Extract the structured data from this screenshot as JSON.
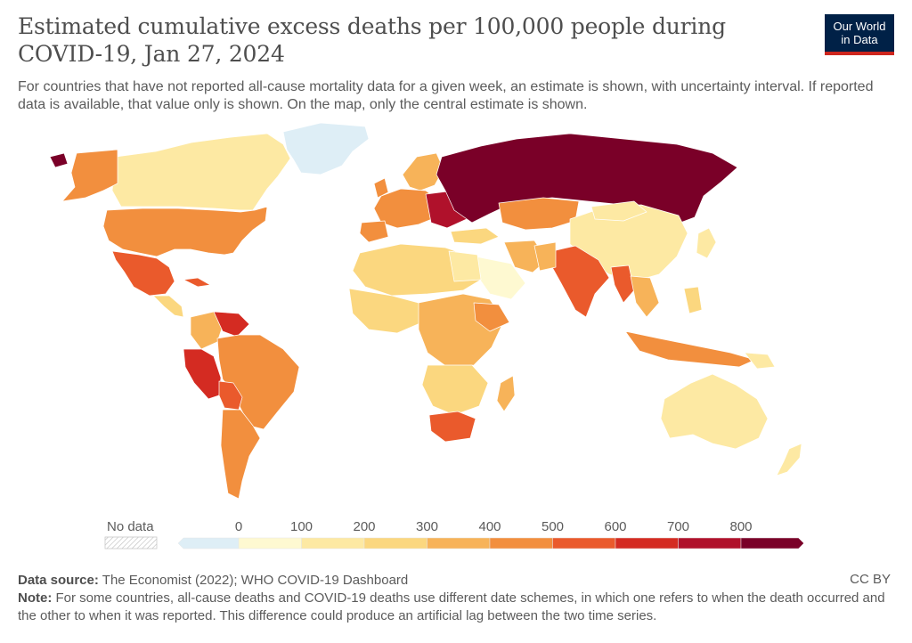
{
  "header": {
    "title": "Estimated cumulative excess deaths per 100,000 people during COVID-19, Jan 27, 2024",
    "subtitle": "For countries that have not reported all-cause mortality data for a given week, an estimate is shown, with uncertainty interval. If reported data is available, that value only is shown. On the map, only the central estimate is shown."
  },
  "logo": {
    "line1": "Our World",
    "line2": "in Data"
  },
  "legend": {
    "no_data_label": "No data",
    "ticks": [
      "0",
      "100",
      "200",
      "300",
      "400",
      "500",
      "600",
      "700",
      "800"
    ],
    "colors": [
      "#deeef6",
      "#fef9d1",
      "#fde9a3",
      "#fbd77f",
      "#f7b359",
      "#f28f3e",
      "#ea5a2c",
      "#d42b22",
      "#b0112b",
      "#7a0028"
    ]
  },
  "footer": {
    "source_label": "Data source:",
    "source_text": "The Economist (2022); WHO COVID-19 Dashboard",
    "license": "CC BY",
    "note_label": "Note:",
    "note_text": "For some countries, all-cause deaths and COVID-19 deaths use different date schemes, in which one refers to when the death occurred and the other to when it was reported. This difference could produce an artificial lag between the two time series."
  }
}
